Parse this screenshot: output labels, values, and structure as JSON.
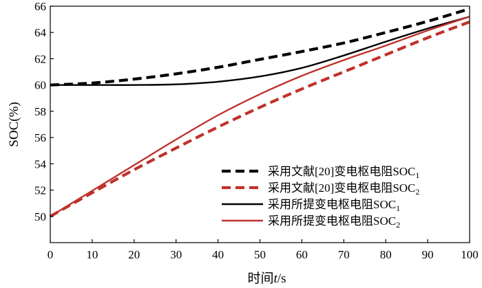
{
  "chart_data": {
    "type": "line",
    "title": "",
    "xlabel": {
      "prefix": "时间",
      "var": "t",
      "suffix": "/s"
    },
    "ylabel": "SOC(%)",
    "xlim": [
      0,
      100
    ],
    "ylim": [
      48,
      66
    ],
    "xticks": [
      0,
      10,
      20,
      30,
      40,
      50,
      60,
      70,
      80,
      90,
      100
    ],
    "yticks": [
      50,
      52,
      54,
      56,
      58,
      60,
      62,
      64,
      66
    ],
    "legend_position": "bottom-right",
    "grid": false,
    "series": [
      {
        "name": "采用文献[20]变电枢电阻SOC",
        "subscript": "1",
        "color": "#000000",
        "style": "dashed",
        "x": [
          0,
          10,
          20,
          30,
          40,
          50,
          60,
          70,
          80,
          90,
          100
        ],
        "y": [
          60.0,
          60.15,
          60.45,
          60.85,
          61.35,
          61.95,
          62.55,
          63.2,
          64.0,
          64.85,
          65.8
        ]
      },
      {
        "name": "采用文献[20]变电枢电阻SOC",
        "subscript": "2",
        "color": "#c0312b",
        "style": "dashed",
        "x": [
          0,
          10,
          20,
          30,
          40,
          50,
          60,
          70,
          80,
          90,
          100
        ],
        "y": [
          50.0,
          51.8,
          53.55,
          55.2,
          56.8,
          58.3,
          59.7,
          61.0,
          62.3,
          63.6,
          64.8
        ]
      },
      {
        "name": "采用所提变电枢电阻SOC",
        "subscript": "1",
        "color": "#000000",
        "style": "solid",
        "x": [
          0,
          10,
          20,
          30,
          40,
          50,
          60,
          70,
          80,
          90,
          100
        ],
        "y": [
          60.0,
          60.0,
          60.0,
          60.05,
          60.25,
          60.65,
          61.3,
          62.25,
          63.3,
          64.3,
          65.2
        ]
      },
      {
        "name": "采用所提变电枢电阻SOC",
        "subscript": "2",
        "color": "#c0312b",
        "style": "solid",
        "x": [
          0,
          10,
          20,
          30,
          40,
          50,
          60,
          70,
          80,
          90,
          100
        ],
        "y": [
          50.0,
          51.95,
          53.9,
          55.85,
          57.7,
          59.3,
          60.7,
          61.9,
          63.0,
          64.15,
          65.2
        ]
      }
    ]
  }
}
